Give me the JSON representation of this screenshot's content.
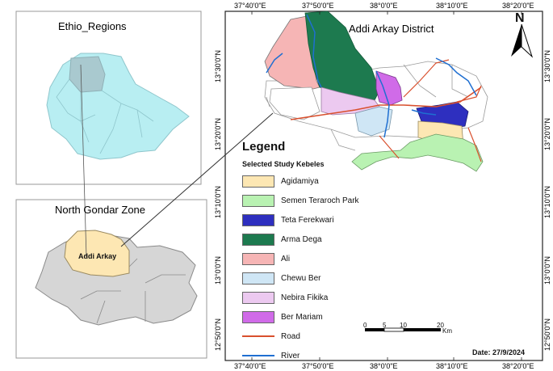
{
  "inset_top": {
    "title": "Ethio_Regions"
  },
  "inset_bottom": {
    "title": "North Gondar Zone",
    "place_label": "Addi Arkay"
  },
  "main_map": {
    "title": "Addi Arkay District",
    "north_label": "N"
  },
  "coords": {
    "top": [
      "37°40'0\"E",
      "37°50'0\"E",
      "38°0'0\"E",
      "38°10'0\"E",
      "38°20'0\"E"
    ],
    "bottom": [
      "37°40'0\"E",
      "37°50'0\"E",
      "38°0'0\"E",
      "38°10'0\"E",
      "38°20'0\"E"
    ],
    "left": [
      "13°30'0\"N",
      "13°20'0\"N",
      "13°10'0\"N",
      "13°0'0\"N",
      "12°50'0\"N"
    ],
    "right": [
      "13°30'0\"N",
      "13°20'0\"N",
      "13°10'0\"N",
      "13°0'0\"N",
      "12°50'0\"N"
    ]
  },
  "legend": {
    "title": "Legend",
    "subtitle": "Selected Study Kebeles",
    "items": [
      {
        "label": "Agidamiya",
        "color": "#fde7b3",
        "kind": "fill"
      },
      {
        "label": "Semen Teraroch Park",
        "color": "#b9f2b2",
        "kind": "fill"
      },
      {
        "label": "Teta Ferekwari",
        "color": "#2e2fbf",
        "kind": "fill"
      },
      {
        "label": "Arma Dega",
        "color": "#1d7a4f",
        "kind": "fill"
      },
      {
        "label": "Ali",
        "color": "#f6b5b5",
        "kind": "fill"
      },
      {
        "label": "Chewu Ber",
        "color": "#cfe6f5",
        "kind": "fill"
      },
      {
        "label": "Nebira Fikika",
        "color": "#ecc9f0",
        "kind": "fill"
      },
      {
        "label": "Ber Mariam",
        "color": "#d06be8",
        "kind": "fill"
      },
      {
        "label": "Road",
        "color": "#d9502e",
        "kind": "line"
      },
      {
        "label": "River",
        "color": "#1f6fd1",
        "kind": "line"
      }
    ]
  },
  "scale": {
    "ticks": [
      "0",
      "5",
      "10",
      "20"
    ],
    "unit": "Km"
  },
  "date": "Date: 27/9/2024"
}
